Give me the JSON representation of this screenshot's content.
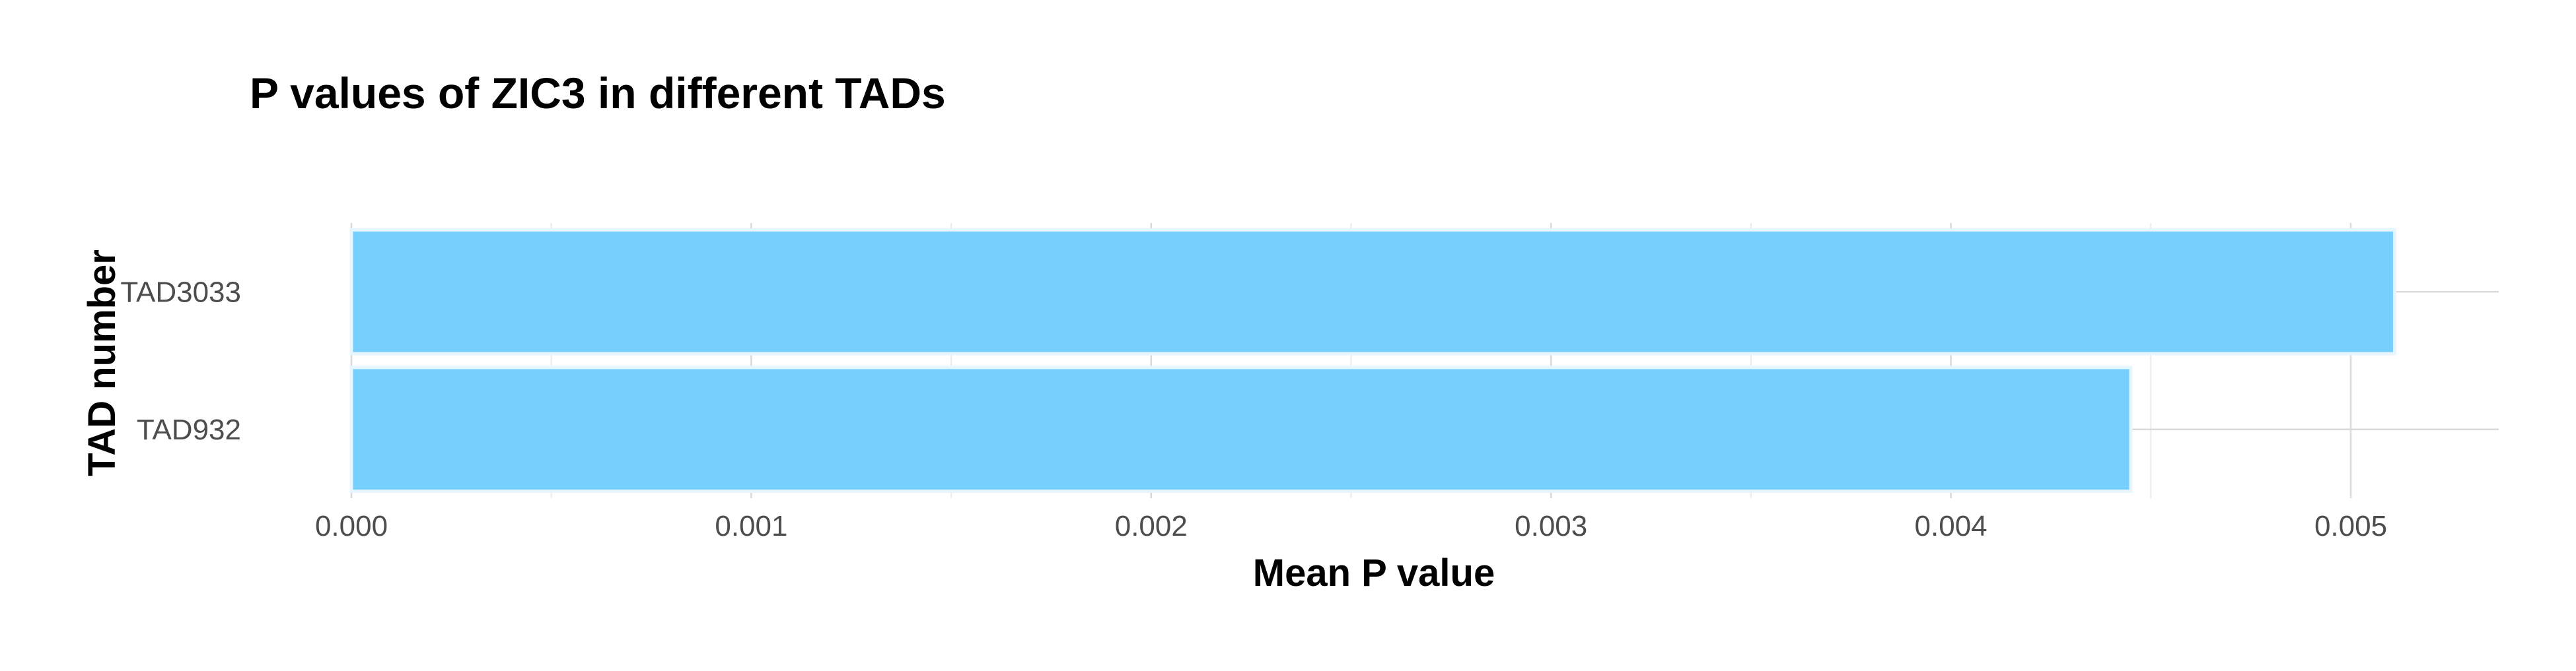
{
  "chart_data": {
    "type": "bar",
    "orientation": "horizontal",
    "title": "P values of ZIC3 in different TADs",
    "xlabel": "Mean P value",
    "ylabel": "TAD number",
    "categories": [
      "TAD3033",
      "TAD932"
    ],
    "values": [
      0.00511,
      0.00445
    ],
    "xlim": [
      0,
      0.00537
    ],
    "x_ticks": [
      0.0,
      0.001,
      0.002,
      0.003,
      0.004,
      0.005
    ],
    "x_tick_labels": [
      "0.000",
      "0.001",
      "0.002",
      "0.003",
      "0.004",
      "0.005"
    ],
    "grid": true,
    "legend": "none",
    "bar_color": "#76cffc",
    "bar_outline": "#e6f5fe"
  }
}
